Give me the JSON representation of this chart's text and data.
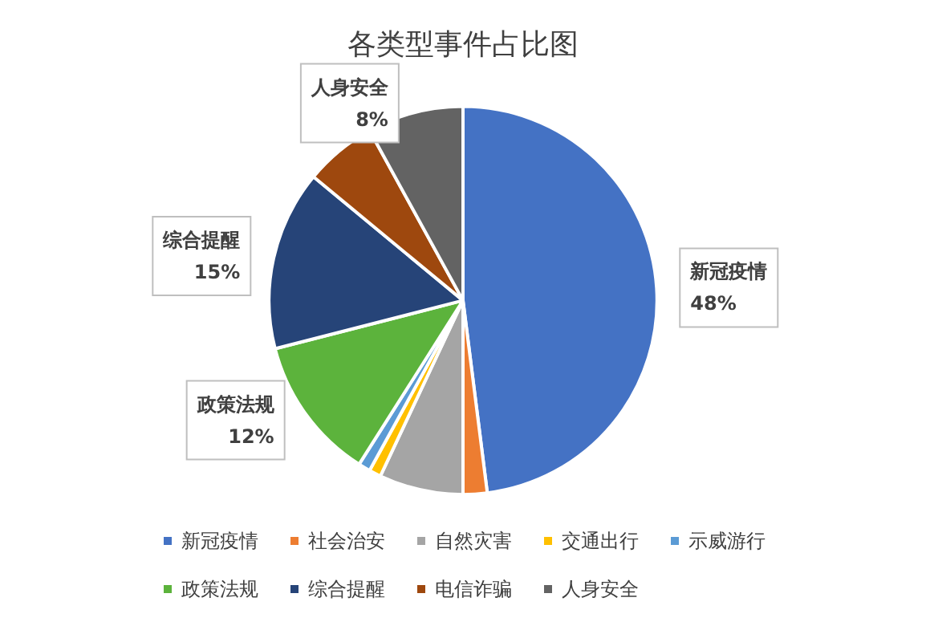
{
  "chart_data": {
    "type": "pie",
    "title": "各类型事件占比图",
    "categories": [
      "新冠疫情",
      "社会治安",
      "自然灾害",
      "交通出行",
      "示威游行",
      "政策法规",
      "综合提醒",
      "电信诈骗",
      "人身安全"
    ],
    "values": [
      48,
      2,
      7,
      1,
      1,
      12,
      15,
      6,
      8
    ],
    "value_labels": [
      "48%",
      null,
      null,
      null,
      null,
      "12%",
      "15%",
      null,
      "8%"
    ],
    "colors": [
      "#4472c4",
      "#ed7d31",
      "#a5a5a5",
      "#ffc000",
      "#5b9bd5",
      "#5cb33c",
      "#264478",
      "#9e480e",
      "#636363"
    ],
    "legend": "bottom"
  }
}
